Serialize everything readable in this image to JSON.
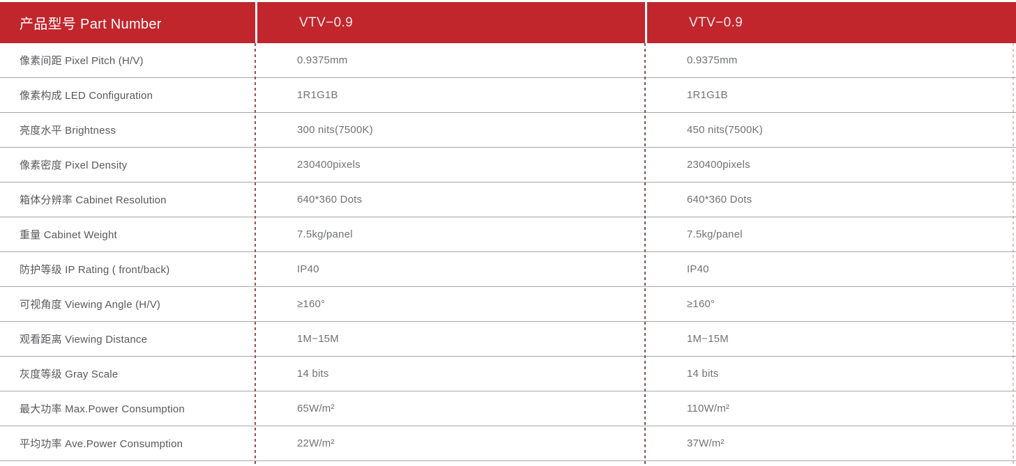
{
  "table": {
    "header": {
      "part_number_label": "产品型号 Part Number",
      "columns": [
        {
          "label": "VTV−0.9"
        },
        {
          "label": "VTV−0.9"
        }
      ]
    },
    "rows": [
      {
        "label": "像素间距 Pixel Pitch (H/V)",
        "col1": "0.9375mm",
        "col2": "0.9375mm"
      },
      {
        "label": "像素构成 LED Configuration",
        "col1": "1R1G1B",
        "col2": "1R1G1B"
      },
      {
        "label": "亮度水平 Brightness",
        "col1": "300 nits(7500K)",
        "col2": "450 nits(7500K)"
      },
      {
        "label": "像素密度 Pixel Density",
        "col1": "230400pixels",
        "col2": "230400pixels"
      },
      {
        "label": "箱体分辨率 Cabinet Resolution",
        "col1": "640*360 Dots",
        "col2": "640*360 Dots"
      },
      {
        "label": "重量  Cabinet Weight",
        "col1": "7.5kg/panel",
        "col2": "7.5kg/panel"
      },
      {
        "label": "防护等级 IP Rating ( front/back)",
        "col1": "IP40",
        "col2": "IP40"
      },
      {
        "label": "可视角度 Viewing Angle (H/V)",
        "col1": "≥160°",
        "col2": "≥160°"
      },
      {
        "label": "观看距离  Viewing Distance",
        "col1": "1M−15M",
        "col2": "1M−15M"
      },
      {
        "label": "灰度等级 Gray Scale",
        "col1": "14 bits",
        "col2": "14 bits"
      },
      {
        "label": "最大功率 Max.Power Consumption",
        "col1": "65W/m²",
        "col2": "110W/m²"
      },
      {
        "label": "平均功率 Ave.Power Consumption",
        "col1": "22W/m²",
        "col2": "37W/m²"
      }
    ],
    "colors": {
      "header_background": "#c1262d",
      "header_text": "#ffffff",
      "row_label_text": "#58595c",
      "row_value_text": "#717275",
      "row_divider": "#a6a6a6",
      "column_dash": "#9d4b43"
    }
  }
}
